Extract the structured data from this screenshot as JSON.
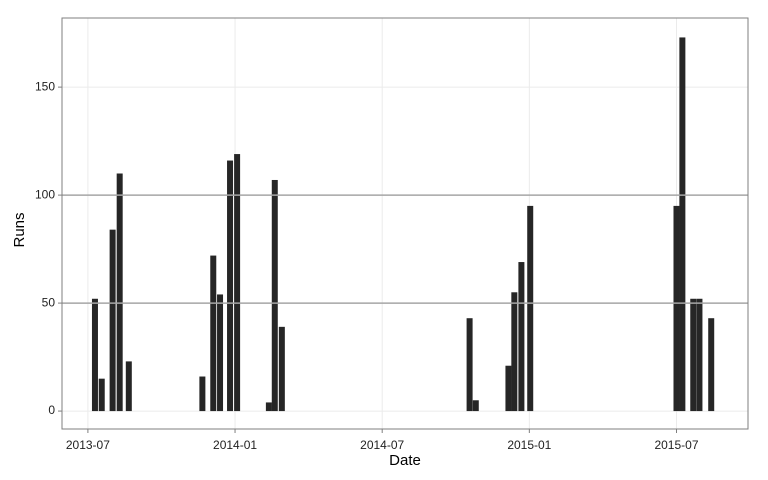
{
  "chart_data": {
    "type": "bar",
    "x": [
      2013.524,
      2013.547,
      2013.584,
      2013.608,
      2013.639,
      2013.889,
      2013.926,
      2013.949,
      2013.983,
      2014.007,
      2014.115,
      2014.135,
      2014.159,
      2014.797,
      2014.818,
      2014.929,
      2014.949,
      2014.973,
      2015.003,
      2015.5,
      2015.52,
      2015.557,
      2015.578,
      2015.618
    ],
    "values": [
      52,
      15,
      84,
      110,
      23,
      16,
      72,
      54,
      116,
      119,
      4,
      107,
      39,
      43,
      5,
      21,
      55,
      69,
      95,
      95,
      173,
      52,
      52,
      43
    ],
    "color": "#262626",
    "x_label": "Date",
    "y_label": "Runs",
    "xlim": [
      2013.412,
      2015.743
    ],
    "xticks": [
      {
        "value": 2013.5,
        "label": "2013-07"
      },
      {
        "value": 2014.0,
        "label": "2014-01"
      },
      {
        "value": 2014.5,
        "label": "2014-07"
      },
      {
        "value": 2015.0,
        "label": "2015-01"
      },
      {
        "value": 2015.5,
        "label": "2015-07"
      }
    ],
    "ylim": [
      -8.3,
      182
    ],
    "yticks": [
      0,
      50,
      100,
      150
    ],
    "hlines": [
      50,
      100
    ],
    "hline_color": "#a6a6a6",
    "grid": true
  }
}
